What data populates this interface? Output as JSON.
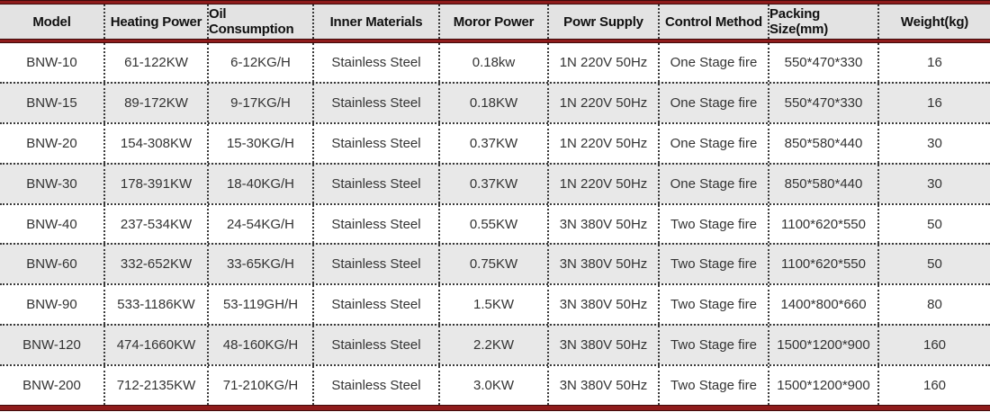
{
  "chart_data": {
    "type": "table",
    "columns": [
      "Model",
      "Heating Power",
      "Oil Consumption",
      "Inner Materials",
      "Moror Power",
      "Powr Supply",
      "Control Method",
      "Packing Size(mm)",
      "Weight(kg)"
    ],
    "rows": [
      [
        "BNW-10",
        "61-122KW",
        "6-12KG/H",
        "Stainless Steel",
        "0.18kw",
        "1N 220V 50Hz",
        "One Stage fire",
        "550*470*330",
        "16"
      ],
      [
        "BNW-15",
        "89-172KW",
        "9-17KG/H",
        "Stainless Steel",
        "0.18KW",
        "1N 220V 50Hz",
        "One Stage fire",
        "550*470*330",
        "16"
      ],
      [
        "BNW-20",
        "154-308KW",
        "15-30KG/H",
        "Stainless Steel",
        "0.37KW",
        "1N 220V 50Hz",
        "One Stage fire",
        "850*580*440",
        "30"
      ],
      [
        "BNW-30",
        "178-391KW",
        "18-40KG/H",
        "Stainless Steel",
        "0.37KW",
        "1N 220V 50Hz",
        "One Stage fire",
        "850*580*440",
        "30"
      ],
      [
        "BNW-40",
        "237-534KW",
        "24-54KG/H",
        "Stainless Steel",
        "0.55KW",
        "3N 380V 50Hz",
        "Two Stage fire",
        "1100*620*550",
        "50"
      ],
      [
        "BNW-60",
        "332-652KW",
        "33-65KG/H",
        "Stainless Steel",
        "0.75KW",
        "3N 380V 50Hz",
        "Two Stage fire",
        "1100*620*550",
        "50"
      ],
      [
        "BNW-90",
        "533-1186KW",
        "53-119GH/H",
        "Stainless Steel",
        "1.5KW",
        "3N 380V 50Hz",
        "Two Stage fire",
        "1400*800*660",
        "80"
      ],
      [
        "BNW-120",
        "474-1660KW",
        "48-160KG/H",
        "Stainless Steel",
        "2.2KW",
        "3N 380V 50Hz",
        "Two Stage fire",
        "1500*1200*900",
        "160"
      ],
      [
        "BNW-200",
        "712-2135KW",
        "71-210KG/H",
        "Stainless Steel",
        "3.0KW",
        "3N 380V 50Hz",
        "Two Stage fire",
        "1500*1200*900",
        "160"
      ]
    ],
    "layout": {
      "header_position": "top",
      "alternating_row_shading": true,
      "shaded_row_indices": [
        1,
        3,
        5,
        7
      ],
      "separators": "dotted"
    }
  },
  "colors": {
    "accent_red": "#8e1b1b",
    "accent_red_edge": "#3f0b0b",
    "header_bg": "#e3e3e3",
    "row_alt_bg": "#e8e8e8",
    "header_text": "#111111",
    "cell_text": "#333333",
    "dot_separator": "#3a3a3a"
  }
}
